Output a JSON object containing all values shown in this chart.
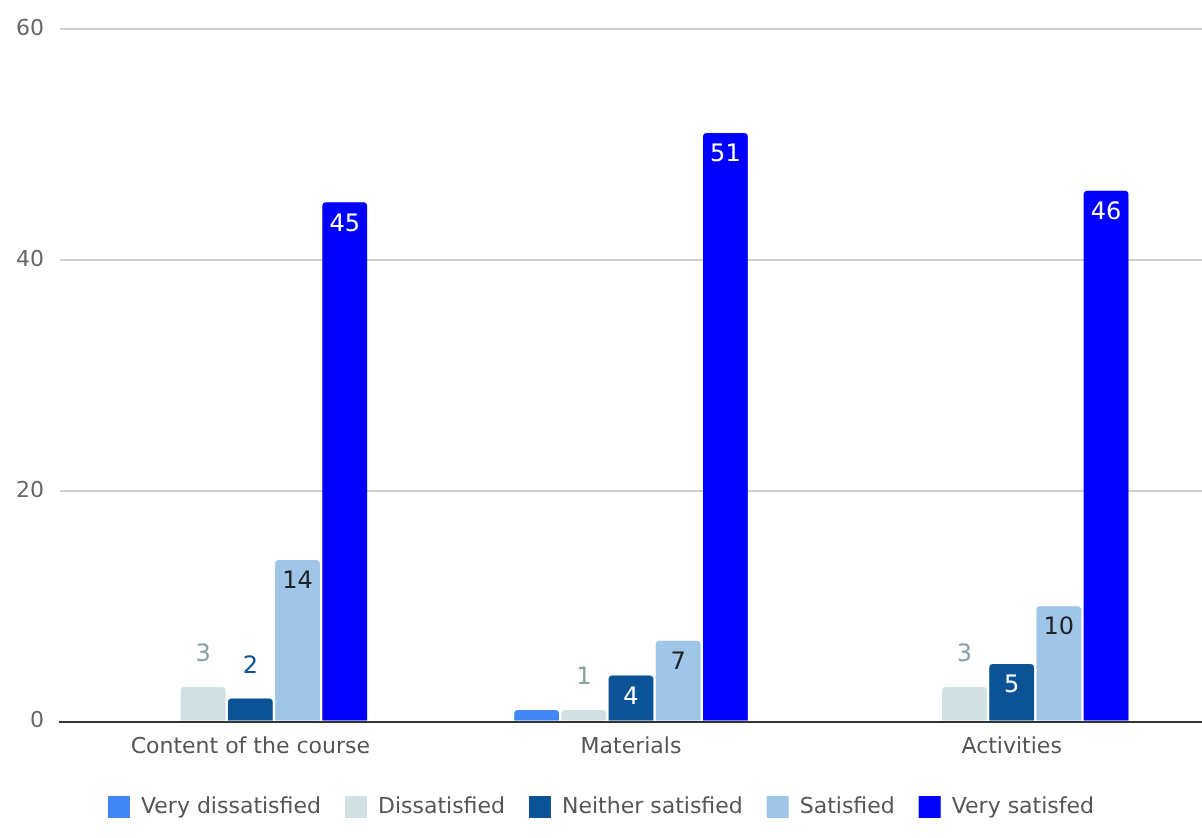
{
  "chart_data": {
    "type": "bar",
    "categories": [
      "Content of the course",
      "Materials",
      "Activities"
    ],
    "series": [
      {
        "name": "Very dissatisfied",
        "color": "#4285f4",
        "values": [
          0,
          1,
          0
        ],
        "value_labels": [
          null,
          null,
          null
        ]
      },
      {
        "name": "Dissatisfied",
        "color": "#d0e0e3",
        "values": [
          3,
          1,
          3
        ],
        "value_labels": [
          "3",
          "1",
          "3"
        ]
      },
      {
        "name": "Neither satisfied",
        "color": "#0b5394",
        "values": [
          2,
          4,
          5
        ],
        "value_labels": [
          "2",
          "4",
          "5"
        ]
      },
      {
        "name": "Satisfied",
        "color": "#9fc5e8",
        "values": [
          14,
          7,
          10
        ],
        "value_labels": [
          "14",
          "7",
          "10"
        ]
      },
      {
        "name": "Very satisfed",
        "color": "#0000ff",
        "values": [
          45,
          51,
          46
        ],
        "value_labels": [
          "45",
          "51",
          "46"
        ]
      }
    ],
    "ylim": [
      0,
      60
    ],
    "yticks": [
      0,
      20,
      40,
      60
    ],
    "grid": "y",
    "legend": "bottom"
  }
}
